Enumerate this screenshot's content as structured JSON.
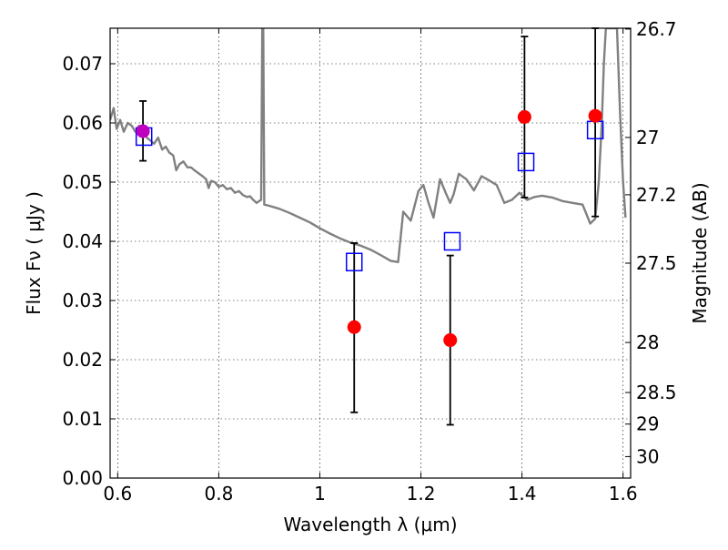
{
  "chart_data": {
    "type": "scatter",
    "title": "",
    "xlabel": "Wavelength  λ (μm)",
    "ylabel": "Flux  Fν  ( μJy )",
    "y2label": "Magnitude (AB)",
    "xlim": [
      0.585,
      1.615
    ],
    "ylim": [
      0.0,
      0.076
    ],
    "grid": true,
    "x_ticks": [
      "0.6",
      "0.8",
      "1",
      "1.2",
      "1.4",
      "1.6"
    ],
    "y_ticks": [
      "0.00",
      "0.01",
      "0.02",
      "0.03",
      "0.04",
      "0.05",
      "0.06",
      "0.07"
    ],
    "magnitude_ticks": [
      "26.7",
      "27",
      "27.2",
      "27.5",
      "28",
      "28.5",
      "29",
      "30"
    ],
    "colors": {
      "model_spectrum": "#808080",
      "observed": "#ff0000",
      "model_photometry": "#0000ff",
      "highlight": "#bf00bf",
      "error_bar": "#000000"
    },
    "series": [
      {
        "kind": "line",
        "points": [
          [
            0.585,
            0.0605
          ],
          [
            0.592,
            0.0625
          ],
          [
            0.598,
            0.059
          ],
          [
            0.605,
            0.0605
          ],
          [
            0.612,
            0.0585
          ],
          [
            0.62,
            0.06
          ],
          [
            0.628,
            0.0595
          ],
          [
            0.635,
            0.0585
          ],
          [
            0.642,
            0.0595
          ],
          [
            0.65,
            0.0585
          ],
          [
            0.658,
            0.0575
          ],
          [
            0.665,
            0.057
          ],
          [
            0.672,
            0.0565
          ],
          [
            0.68,
            0.0575
          ],
          [
            0.688,
            0.0555
          ],
          [
            0.695,
            0.056
          ],
          [
            0.702,
            0.055
          ],
          [
            0.71,
            0.0545
          ],
          [
            0.716,
            0.052
          ],
          [
            0.722,
            0.053
          ],
          [
            0.73,
            0.0535
          ],
          [
            0.738,
            0.0525
          ],
          [
            0.745,
            0.0525
          ],
          [
            0.752,
            0.052
          ],
          [
            0.76,
            0.0515
          ],
          [
            0.768,
            0.051
          ],
          [
            0.775,
            0.0505
          ],
          [
            0.78,
            0.049
          ],
          [
            0.785,
            0.0502
          ],
          [
            0.792,
            0.05
          ],
          [
            0.8,
            0.0492
          ],
          [
            0.808,
            0.0495
          ],
          [
            0.816,
            0.0488
          ],
          [
            0.824,
            0.049
          ],
          [
            0.832,
            0.0482
          ],
          [
            0.84,
            0.0485
          ],
          [
            0.848,
            0.0478
          ],
          [
            0.856,
            0.0475
          ],
          [
            0.862,
            0.0476
          ],
          [
            0.868,
            0.047
          ],
          [
            0.875,
            0.0465
          ],
          [
            0.88,
            0.0468
          ],
          [
            0.884,
            0.047
          ],
          [
            0.886,
            0.076
          ],
          [
            0.888,
            0.076
          ],
          [
            0.89,
            0.0462
          ],
          [
            0.9,
            0.046
          ],
          [
            0.92,
            0.0455
          ],
          [
            0.94,
            0.0448
          ],
          [
            0.96,
            0.044
          ],
          [
            0.98,
            0.0432
          ],
          [
            1.0,
            0.0422
          ],
          [
            1.02,
            0.0413
          ],
          [
            1.04,
            0.0405
          ],
          [
            1.06,
            0.0398
          ],
          [
            1.08,
            0.0393
          ],
          [
            1.1,
            0.0386
          ],
          [
            1.12,
            0.0377
          ],
          [
            1.14,
            0.0367
          ],
          [
            1.155,
            0.0365
          ],
          [
            1.165,
            0.045
          ],
          [
            1.18,
            0.0435
          ],
          [
            1.195,
            0.0485
          ],
          [
            1.205,
            0.0495
          ],
          [
            1.215,
            0.0465
          ],
          [
            1.225,
            0.044
          ],
          [
            1.238,
            0.0505
          ],
          [
            1.25,
            0.048
          ],
          [
            1.258,
            0.0465
          ],
          [
            1.265,
            0.048
          ],
          [
            1.275,
            0.0514
          ],
          [
            1.29,
            0.0505
          ],
          [
            1.305,
            0.0486
          ],
          [
            1.32,
            0.051
          ],
          [
            1.335,
            0.0503
          ],
          [
            1.35,
            0.0495
          ],
          [
            1.365,
            0.0465
          ],
          [
            1.38,
            0.047
          ],
          [
            1.395,
            0.0482
          ],
          [
            1.41,
            0.047
          ],
          [
            1.425,
            0.0475
          ],
          [
            1.44,
            0.0477
          ],
          [
            1.46,
            0.0474
          ],
          [
            1.48,
            0.0468
          ],
          [
            1.5,
            0.0465
          ],
          [
            1.52,
            0.0462
          ],
          [
            1.535,
            0.043
          ],
          [
            1.545,
            0.0438
          ],
          [
            1.552,
            0.05
          ],
          [
            1.558,
            0.06
          ],
          [
            1.562,
            0.07
          ],
          [
            1.566,
            0.076
          ],
          [
            1.588,
            0.076
          ],
          [
            1.594,
            0.062
          ],
          [
            1.6,
            0.05
          ],
          [
            1.605,
            0.044
          ]
        ]
      },
      {
        "kind": "observed",
        "points": [
          {
            "x": 0.65,
            "y": 0.0586,
            "lo": 0.0536,
            "hi": 0.0637
          },
          {
            "x": 1.068,
            "y": 0.0255,
            "lo": 0.0111,
            "hi": 0.0397
          },
          {
            "x": 1.258,
            "y": 0.0233,
            "lo": 0.009,
            "hi": 0.0376
          },
          {
            "x": 1.405,
            "y": 0.061,
            "lo": 0.0474,
            "hi": 0.0746
          },
          {
            "x": 1.545,
            "y": 0.0612,
            "lo": 0.0442,
            "hi": 0.076
          }
        ]
      },
      {
        "kind": "model_photometry",
        "points": [
          [
            0.652,
            0.0577
          ],
          [
            1.068,
            0.0365
          ],
          [
            1.262,
            0.04
          ],
          [
            1.408,
            0.0534
          ],
          [
            1.545,
            0.0588
          ]
        ]
      }
    ]
  }
}
